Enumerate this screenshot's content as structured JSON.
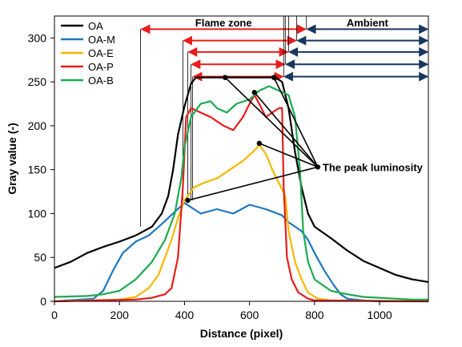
{
  "chart_data": {
    "type": "line",
    "xlabel": "Distance (pixel)",
    "ylabel": "Gray value (-)",
    "xlim": [
      0,
      1150
    ],
    "ylim": [
      0,
      325
    ],
    "xticks": [
      0,
      200,
      400,
      600,
      800,
      1000
    ],
    "yticks": [
      0,
      50,
      100,
      150,
      200,
      250,
      300
    ],
    "grid": false,
    "legend_position": "top-left",
    "series": [
      {
        "name": "OA",
        "color": "#000000",
        "x": [
          0,
          50,
          100,
          150,
          200,
          250,
          300,
          330,
          350,
          365,
          380,
          400,
          420,
          435,
          450,
          500,
          550,
          600,
          650,
          680,
          700,
          720,
          740,
          760,
          780,
          800,
          850,
          900,
          950,
          1000,
          1050,
          1100,
          1150
        ],
        "y": [
          38,
          45,
          55,
          62,
          68,
          75,
          85,
          100,
          120,
          150,
          190,
          222,
          248,
          255,
          255,
          255,
          255,
          255,
          255,
          255,
          250,
          220,
          170,
          130,
          100,
          85,
          72,
          58,
          46,
          38,
          30,
          25,
          22
        ]
      },
      {
        "name": "OA-M",
        "color": "#1f77c0",
        "x": [
          0,
          120,
          150,
          180,
          210,
          250,
          290,
          330,
          370,
          400,
          450,
          500,
          550,
          600,
          650,
          700,
          720,
          740,
          760,
          780,
          800,
          830,
          860,
          880,
          900,
          950,
          1000,
          1100,
          1150
        ],
        "y": [
          0,
          3,
          12,
          35,
          55,
          68,
          75,
          88,
          102,
          112,
          100,
          105,
          100,
          110,
          105,
          98,
          90,
          85,
          80,
          70,
          55,
          35,
          18,
          8,
          3,
          1,
          0,
          0,
          0
        ]
      },
      {
        "name": "OA-E",
        "color": "#f5b800",
        "x": [
          0,
          200,
          250,
          290,
          320,
          340,
          360,
          380,
          400,
          430,
          460,
          500,
          540,
          580,
          610,
          630,
          650,
          670,
          690,
          710,
          720,
          740,
          760,
          780,
          810,
          850,
          1150
        ],
        "y": [
          0,
          2,
          5,
          15,
          30,
          50,
          70,
          95,
          115,
          130,
          135,
          140,
          150,
          160,
          170,
          178,
          168,
          150,
          135,
          120,
          80,
          45,
          25,
          10,
          3,
          1,
          0
        ]
      },
      {
        "name": "OA-P",
        "color": "#e81c1c",
        "x": [
          0,
          250,
          300,
          340,
          360,
          380,
          395,
          405,
          420,
          450,
          480,
          520,
          550,
          580,
          600,
          615,
          630,
          650,
          670,
          690,
          700,
          705,
          715,
          730,
          750,
          780,
          800,
          1150
        ],
        "y": [
          0,
          2,
          4,
          8,
          15,
          50,
          130,
          210,
          220,
          215,
          210,
          200,
          195,
          210,
          225,
          235,
          225,
          210,
          215,
          220,
          220,
          130,
          50,
          25,
          10,
          3,
          1,
          0
        ]
      },
      {
        "name": "OA-B",
        "color": "#1aab4f",
        "x": [
          0,
          100,
          150,
          200,
          250,
          300,
          340,
          370,
          390,
          400,
          420,
          450,
          480,
          500,
          530,
          560,
          600,
          630,
          660,
          690,
          720,
          740,
          755,
          765,
          780,
          800,
          850,
          900,
          950,
          1000,
          1050,
          1100,
          1150
        ],
        "y": [
          5,
          6,
          8,
          12,
          25,
          45,
          70,
          100,
          140,
          175,
          210,
          225,
          228,
          220,
          215,
          225,
          230,
          240,
          245,
          240,
          235,
          210,
          150,
          80,
          45,
          25,
          12,
          8,
          5,
          4,
          3,
          2,
          2
        ]
      }
    ],
    "zone_labels": {
      "flame": "Flame zone",
      "ambient": "Ambient"
    },
    "zone_arrows": [
      {
        "from": 265,
        "boundary": 775,
        "y": 310,
        "color": "#e81c1c"
      },
      {
        "from": 395,
        "boundary": 745,
        "y": 297,
        "color": "#e81c1c"
      },
      {
        "from": 410,
        "boundary": 720,
        "y": 284,
        "color": "#e81c1c"
      },
      {
        "from": 420,
        "boundary": 710,
        "y": 270,
        "color": "#e81c1c"
      },
      {
        "from": 425,
        "boundary": 705,
        "y": 256,
        "color": "#e81c1c"
      }
    ],
    "ambient_end": 1150,
    "annotation": {
      "text": "The peak luminosity",
      "target": {
        "x": 810,
        "y": 153
      },
      "peaks": [
        {
          "x": 525,
          "y": 255
        },
        {
          "x": 675,
          "y": 255
        },
        {
          "x": 615,
          "y": 238
        },
        {
          "x": 630,
          "y": 180
        },
        {
          "x": 410,
          "y": 115
        }
      ]
    }
  }
}
